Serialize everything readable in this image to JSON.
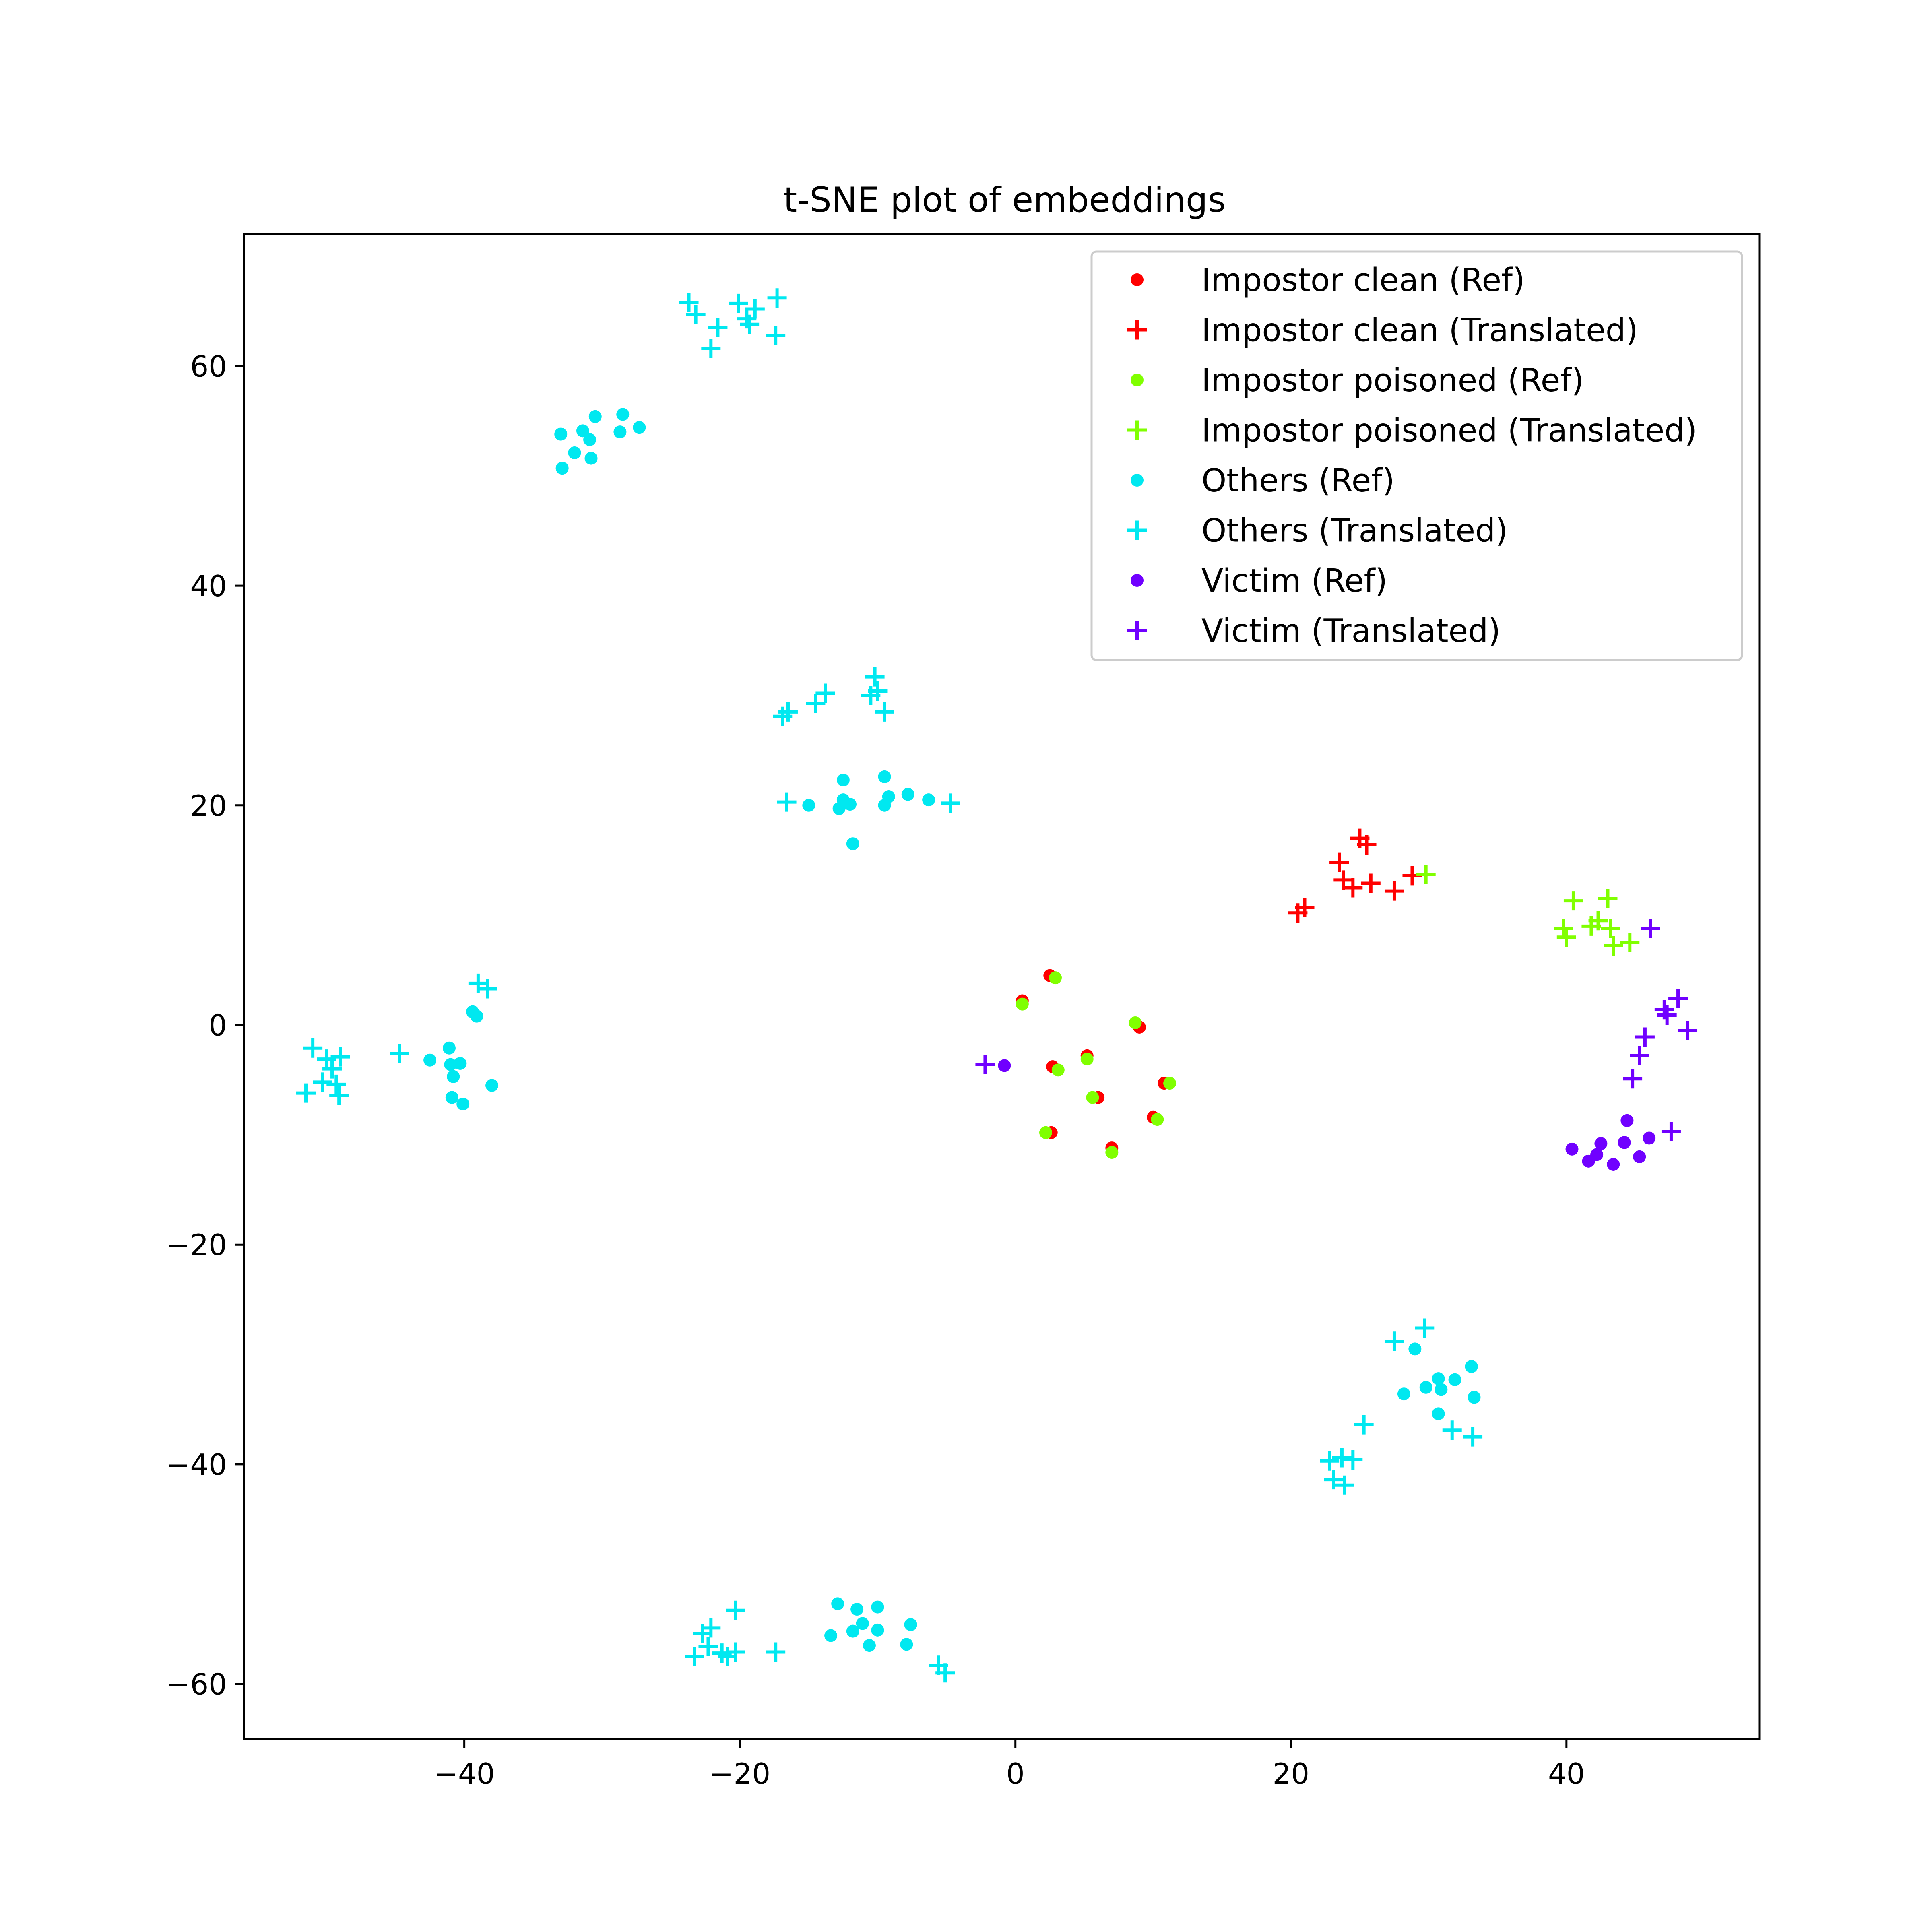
{
  "chart_data": {
    "type": "scatter",
    "title": "t-SNE plot of embeddings",
    "xlabel": "",
    "ylabel": "",
    "xlim": [
      -56,
      54
    ],
    "ylim": [
      -65,
      72
    ],
    "xticks": [
      -40,
      -20,
      0,
      20,
      40
    ],
    "yticks": [
      -60,
      -40,
      -20,
      0,
      20,
      40,
      60
    ],
    "xtick_labels": [
      "−40",
      "−20",
      "0",
      "20",
      "40"
    ],
    "ytick_labels": [
      "−60",
      "−40",
      "−20",
      "0",
      "20",
      "40",
      "60"
    ],
    "grid": false,
    "legend_position": "top-right",
    "series": [
      {
        "name": "Impostor clean (Ref)",
        "marker": "dot",
        "color": "#ff0000",
        "points": [
          [
            0.5,
            2.2
          ],
          [
            2.5,
            4.5
          ],
          [
            2.7,
            -3.8
          ],
          [
            2.6,
            -9.8
          ],
          [
            5.2,
            -2.8
          ],
          [
            6.0,
            -6.6
          ],
          [
            7.0,
            -11.2
          ],
          [
            9.0,
            -0.2
          ],
          [
            10.0,
            -8.4
          ],
          [
            10.8,
            -5.3
          ]
        ]
      },
      {
        "name": "Impostor clean (Translated)",
        "marker": "plus",
        "color": "#ff0000",
        "points": [
          [
            20.5,
            10.2
          ],
          [
            21.0,
            10.7
          ],
          [
            23.5,
            14.8
          ],
          [
            23.8,
            13.2
          ],
          [
            24.5,
            12.5
          ],
          [
            25.0,
            17.0
          ],
          [
            25.5,
            16.4
          ],
          [
            25.8,
            12.9
          ],
          [
            27.5,
            12.2
          ],
          [
            28.8,
            13.6
          ]
        ]
      },
      {
        "name": "Impostor poisoned (Ref)",
        "marker": "dot",
        "color": "#80ff00",
        "points": [
          [
            0.5,
            1.9
          ],
          [
            2.9,
            4.3
          ],
          [
            3.1,
            -4.1
          ],
          [
            2.2,
            -9.8
          ],
          [
            5.2,
            -3.1
          ],
          [
            5.6,
            -6.6
          ],
          [
            7.0,
            -11.6
          ],
          [
            8.7,
            0.2
          ],
          [
            10.3,
            -8.6
          ],
          [
            11.2,
            -5.3
          ]
        ]
      },
      {
        "name": "Impostor poisoned (Translated)",
        "marker": "plus",
        "color": "#80ff00",
        "points": [
          [
            29.8,
            13.7
          ],
          [
            39.8,
            8.8
          ],
          [
            40.0,
            8.0
          ],
          [
            40.5,
            11.3
          ],
          [
            41.8,
            9.0
          ],
          [
            42.3,
            9.5
          ],
          [
            43.0,
            11.5
          ],
          [
            43.2,
            8.8
          ],
          [
            43.4,
            7.2
          ],
          [
            44.6,
            7.5
          ]
        ]
      },
      {
        "name": "Others (Ref)",
        "marker": "dot",
        "color": "#00e8f0",
        "points": [
          [
            -33.0,
            53.8
          ],
          [
            -32.9,
            50.7
          ],
          [
            -32.0,
            52.1
          ],
          [
            -31.4,
            54.1
          ],
          [
            -30.9,
            53.3
          ],
          [
            -30.8,
            51.6
          ],
          [
            -30.5,
            55.4
          ],
          [
            -28.7,
            54.0
          ],
          [
            -28.5,
            55.6
          ],
          [
            -27.3,
            54.4
          ],
          [
            -15.0,
            20.0
          ],
          [
            -12.5,
            22.3
          ],
          [
            -12.8,
            19.7
          ],
          [
            -12.5,
            20.5
          ],
          [
            -12.0,
            20.1
          ],
          [
            -11.8,
            16.5
          ],
          [
            -9.5,
            22.6
          ],
          [
            -9.5,
            20.0
          ],
          [
            -9.2,
            20.8
          ],
          [
            -7.8,
            21.0
          ],
          [
            -6.3,
            20.5
          ],
          [
            -42.5,
            -3.2
          ],
          [
            -41.1,
            -2.1
          ],
          [
            -41.0,
            -3.6
          ],
          [
            -40.8,
            -4.7
          ],
          [
            -40.9,
            -6.6
          ],
          [
            -40.3,
            -3.5
          ],
          [
            -40.1,
            -7.2
          ],
          [
            -39.4,
            1.2
          ],
          [
            -39.1,
            0.8
          ],
          [
            -38.0,
            -5.5
          ],
          [
            28.2,
            -33.6
          ],
          [
            29.0,
            -29.5
          ],
          [
            29.8,
            -33.0
          ],
          [
            30.7,
            -32.2
          ],
          [
            30.7,
            -35.4
          ],
          [
            30.9,
            -33.2
          ],
          [
            31.9,
            -32.3
          ],
          [
            33.1,
            -31.1
          ],
          [
            33.3,
            -33.9
          ],
          [
            -13.4,
            -55.6
          ],
          [
            -12.9,
            -52.7
          ],
          [
            -11.8,
            -55.2
          ],
          [
            -11.5,
            -53.2
          ],
          [
            -11.1,
            -54.5
          ],
          [
            -10.6,
            -56.5
          ],
          [
            -10.0,
            -55.1
          ],
          [
            -10.0,
            -53.0
          ],
          [
            -7.9,
            -56.4
          ],
          [
            -7.6,
            -54.6
          ]
        ]
      },
      {
        "name": "Others (Translated)",
        "marker": "plus",
        "color": "#00e8f0",
        "points": [
          [
            -23.7,
            65.8
          ],
          [
            -23.2,
            64.7
          ],
          [
            -22.1,
            61.6
          ],
          [
            -21.6,
            63.5
          ],
          [
            -20.1,
            65.7
          ],
          [
            -19.5,
            64.3
          ],
          [
            -19.3,
            63.8
          ],
          [
            -18.9,
            65.2
          ],
          [
            -17.4,
            62.8
          ],
          [
            -17.3,
            66.2
          ],
          [
            -16.9,
            28.1
          ],
          [
            -16.5,
            28.5
          ],
          [
            -14.5,
            29.3
          ],
          [
            -13.8,
            30.2
          ],
          [
            -10.5,
            30.0
          ],
          [
            -10.2,
            31.7
          ],
          [
            -10.0,
            30.4
          ],
          [
            -9.5,
            28.5
          ],
          [
            -16.6,
            20.3
          ],
          [
            -4.7,
            20.2
          ],
          [
            -51.5,
            -6.2
          ],
          [
            -51.0,
            -2.1
          ],
          [
            -50.3,
            -5.2
          ],
          [
            -50.0,
            -3.1
          ],
          [
            -49.6,
            -4.0
          ],
          [
            -49.3,
            -5.4
          ],
          [
            -49.1,
            -6.4
          ],
          [
            -49.0,
            -2.9
          ],
          [
            -44.7,
            -2.6
          ],
          [
            -39.0,
            3.8
          ],
          [
            -38.3,
            3.3
          ],
          [
            22.8,
            -39.7
          ],
          [
            23.1,
            -41.4
          ],
          [
            23.7,
            -39.4
          ],
          [
            23.9,
            -41.9
          ],
          [
            24.5,
            -39.6
          ],
          [
            25.3,
            -36.4
          ],
          [
            27.5,
            -28.8
          ],
          [
            29.7,
            -27.6
          ],
          [
            31.7,
            -36.9
          ],
          [
            33.2,
            -37.5
          ],
          [
            -23.3,
            -57.5
          ],
          [
            -22.7,
            -55.4
          ],
          [
            -22.3,
            -56.6
          ],
          [
            -22.1,
            -54.9
          ],
          [
            -21.3,
            -57.2
          ],
          [
            -20.9,
            -57.5
          ],
          [
            -20.3,
            -53.3
          ],
          [
            -20.3,
            -57.1
          ],
          [
            -17.4,
            -57.1
          ],
          [
            -5.6,
            -58.3
          ],
          [
            -5.1,
            -59.0
          ]
        ]
      },
      {
        "name": "Victim (Ref)",
        "marker": "dot",
        "color": "#7000ff",
        "points": [
          [
            -0.8,
            -3.7
          ],
          [
            40.4,
            -11.3
          ],
          [
            41.6,
            -12.4
          ],
          [
            42.2,
            -11.8
          ],
          [
            42.5,
            -10.8
          ],
          [
            43.4,
            -12.7
          ],
          [
            44.2,
            -10.7
          ],
          [
            44.4,
            -8.7
          ],
          [
            45.3,
            -12.0
          ],
          [
            46.0,
            -10.3
          ]
        ]
      },
      {
        "name": "Victim (Translated)",
        "marker": "plus",
        "color": "#7000ff",
        "points": [
          [
            -2.2,
            -3.6
          ],
          [
            44.8,
            -4.9
          ],
          [
            45.3,
            -2.8
          ],
          [
            45.7,
            -1.1
          ],
          [
            46.1,
            8.8
          ],
          [
            47.1,
            1.4
          ],
          [
            47.3,
            0.9
          ],
          [
            47.6,
            -9.7
          ],
          [
            48.1,
            2.4
          ],
          [
            48.8,
            -0.5
          ]
        ]
      }
    ]
  }
}
